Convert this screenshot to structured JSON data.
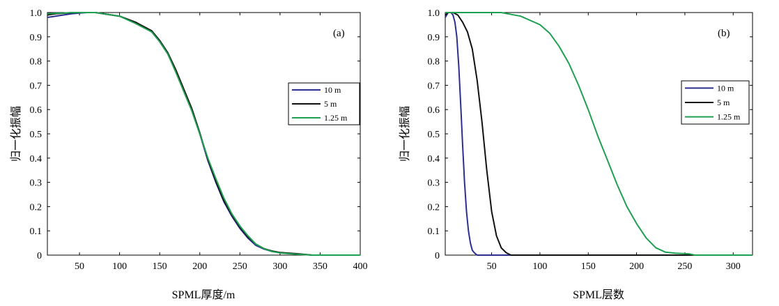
{
  "chart_data": [
    {
      "type": "line",
      "panel_label": "(a)",
      "xlabel": "SPML厚度/m",
      "ylabel": "归一化振幅",
      "xlim": [
        10,
        400
      ],
      "ylim": [
        0,
        1.0
      ],
      "xticks": [
        50,
        100,
        150,
        200,
        250,
        300,
        350,
        400
      ],
      "yticks": [
        0,
        0.1,
        0.2,
        0.3,
        0.4,
        0.5,
        0.6,
        0.7,
        0.8,
        0.9,
        1.0
      ],
      "ytick_labels": [
        "0",
        "0.1",
        "0.2",
        "0.3",
        "0.4",
        "0.5",
        "0.6",
        "0.7",
        "0.8",
        "0.9",
        "1.0"
      ],
      "legend_position": "right-middle",
      "series": [
        {
          "name": "10 m",
          "color": "#2b2f8f",
          "x": [
            10,
            20,
            30,
            40,
            50,
            60,
            70,
            80,
            100,
            120,
            140,
            150,
            160,
            170,
            180,
            190,
            200,
            210,
            220,
            230,
            240,
            250,
            260,
            270,
            280,
            290,
            300,
            320,
            340,
            350,
            400
          ],
          "y": [
            0.98,
            0.985,
            0.99,
            0.995,
            0.998,
            1.0,
            1.0,
            0.995,
            0.985,
            0.96,
            0.92,
            0.88,
            0.83,
            0.76,
            0.68,
            0.6,
            0.5,
            0.39,
            0.3,
            0.22,
            0.16,
            0.11,
            0.07,
            0.04,
            0.025,
            0.015,
            0.01,
            0.005,
            0.0,
            0.0,
            0.0
          ]
        },
        {
          "name": "5 m",
          "color": "#111111",
          "x": [
            10,
            20,
            30,
            40,
            50,
            60,
            70,
            80,
            100,
            120,
            140,
            150,
            160,
            170,
            180,
            190,
            200,
            210,
            220,
            230,
            240,
            250,
            260,
            270,
            280,
            290,
            300,
            320,
            340,
            350,
            400
          ],
          "y": [
            0.99,
            0.995,
            0.997,
            0.999,
            1.0,
            1.0,
            1.0,
            0.995,
            0.985,
            0.96,
            0.925,
            0.885,
            0.835,
            0.765,
            0.685,
            0.605,
            0.505,
            0.395,
            0.305,
            0.225,
            0.165,
            0.115,
            0.075,
            0.045,
            0.027,
            0.017,
            0.011,
            0.006,
            0.0,
            0.0,
            0.0
          ]
        },
        {
          "name": "1.25 m",
          "color": "#1ea050",
          "x": [
            10,
            20,
            30,
            40,
            50,
            60,
            70,
            80,
            100,
            120,
            140,
            150,
            160,
            170,
            180,
            190,
            200,
            210,
            220,
            230,
            240,
            250,
            260,
            270,
            280,
            290,
            300,
            320,
            340,
            350,
            400
          ],
          "y": [
            0.995,
            0.997,
            0.998,
            1.0,
            1.0,
            1.0,
            1.0,
            0.995,
            0.985,
            0.955,
            0.92,
            0.88,
            0.83,
            0.755,
            0.675,
            0.595,
            0.5,
            0.4,
            0.315,
            0.235,
            0.17,
            0.12,
            0.08,
            0.045,
            0.027,
            0.015,
            0.009,
            0.004,
            0.0,
            0.0,
            0.0
          ]
        }
      ]
    },
    {
      "type": "line",
      "panel_label": "(b)",
      "xlabel": "SPML层数",
      "ylabel": "归一化振幅",
      "xlim": [
        2,
        320
      ],
      "ylim": [
        0,
        1.0
      ],
      "xticks": [
        50,
        100,
        150,
        200,
        250,
        300
      ],
      "yticks": [
        0,
        0.1,
        0.2,
        0.3,
        0.4,
        0.5,
        0.6,
        0.7,
        0.8,
        0.9,
        1.0
      ],
      "ytick_labels": [
        "0",
        "0.1",
        "0.2",
        "0.3",
        "0.4",
        "0.5",
        "0.6",
        "0.7",
        "0.8",
        "0.9",
        "1.0"
      ],
      "legend_position": "right-middle",
      "series": [
        {
          "name": "10 m",
          "color": "#2b2f8f",
          "x": [
            2,
            5,
            8,
            10,
            12,
            14,
            16,
            18,
            20,
            22,
            24,
            26,
            28,
            30,
            32,
            35,
            40,
            320
          ],
          "y": [
            0.98,
            1.0,
            1.0,
            0.99,
            0.96,
            0.9,
            0.78,
            0.62,
            0.45,
            0.3,
            0.18,
            0.1,
            0.05,
            0.02,
            0.01,
            0.0,
            0.0,
            0.0
          ]
        },
        {
          "name": "5 m",
          "color": "#111111",
          "x": [
            2,
            5,
            10,
            15,
            20,
            25,
            30,
            35,
            40,
            45,
            50,
            55,
            60,
            65,
            70,
            80,
            320
          ],
          "y": [
            0.99,
            1.0,
            1.0,
            0.99,
            0.96,
            0.92,
            0.85,
            0.72,
            0.55,
            0.35,
            0.18,
            0.08,
            0.03,
            0.01,
            0.0,
            0.0,
            0.0
          ]
        },
        {
          "name": "1.25 m",
          "color": "#1ea050",
          "x": [
            2,
            20,
            40,
            60,
            80,
            100,
            110,
            120,
            130,
            140,
            150,
            160,
            170,
            180,
            190,
            200,
            210,
            220,
            230,
            240,
            250,
            255,
            260,
            320
          ],
          "y": [
            1.0,
            1.0,
            1.0,
            1.0,
            0.985,
            0.95,
            0.915,
            0.86,
            0.79,
            0.7,
            0.6,
            0.49,
            0.39,
            0.29,
            0.2,
            0.13,
            0.07,
            0.03,
            0.012,
            0.008,
            0.006,
            0.005,
            0.0,
            0.0
          ]
        }
      ]
    }
  ]
}
